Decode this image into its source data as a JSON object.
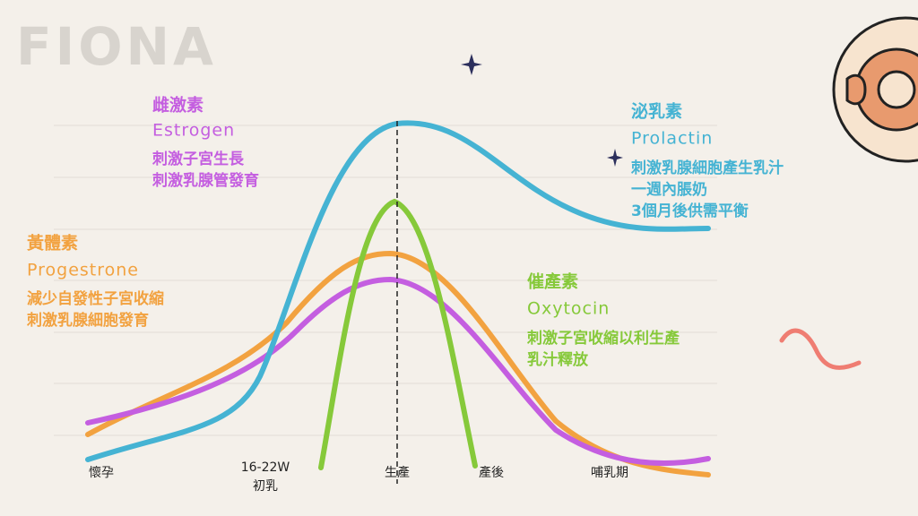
{
  "logo": "FIONA",
  "hormones": [
    {
      "name": "雌激素",
      "english": "Estrogen",
      "notes": [
        "刺激子宮生長",
        "刺激乳腺管發育"
      ]
    },
    {
      "name": "黃體素",
      "english": "Progestrone",
      "notes": [
        "減少自發性子宮收縮",
        "刺激乳腺細胞發育"
      ]
    },
    {
      "name": "泌乳素",
      "english": "Prolactin",
      "notes": [
        "刺激乳腺細胞產生乳汁",
        "一週內脹奶",
        "3個月後供需平衡"
      ]
    },
    {
      "name": "催產素",
      "english": "Oxytocin",
      "notes": [
        "刺激子宮收縮以利生產",
        "乳汁釋放"
      ]
    }
  ],
  "timeline": [
    {
      "label": "懷孕"
    },
    {
      "label": "16-22W",
      "sublabel": "初乳"
    },
    {
      "label": "生產"
    },
    {
      "label": "產後"
    },
    {
      "label": "哺乳期"
    }
  ]
}
